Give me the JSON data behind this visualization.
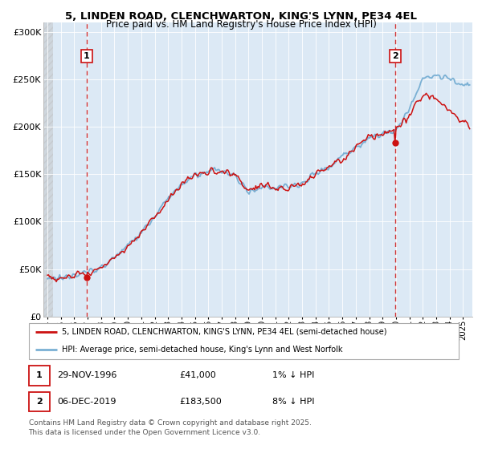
{
  "title_line1": "5, LINDEN ROAD, CLENCHWARTON, KING'S LYNN, PE34 4EL",
  "title_line2": "Price paid vs. HM Land Registry's House Price Index (HPI)",
  "ylabel_ticks": [
    "£0",
    "£50K",
    "£100K",
    "£150K",
    "£200K",
    "£250K",
    "£300K"
  ],
  "ytick_values": [
    0,
    50000,
    100000,
    150000,
    200000,
    250000,
    300000
  ],
  "ylim": [
    0,
    310000
  ],
  "xlim_start": 1993.7,
  "xlim_end": 2025.7,
  "hpi_color": "#7ab0d4",
  "price_color": "#cc1111",
  "marker1_date": 1996.92,
  "marker1_price": 41000,
  "marker1_label": "1",
  "marker2_date": 2019.92,
  "marker2_price": 183500,
  "marker2_label": "2",
  "legend_line1": "5, LINDEN ROAD, CLENCHWARTON, KING'S LYNN, PE34 4EL (semi-detached house)",
  "legend_line2": "HPI: Average price, semi-detached house, King's Lynn and West Norfolk",
  "footnote": "Contains HM Land Registry data © Crown copyright and database right 2025.\nThis data is licensed under the Open Government Licence v3.0.",
  "background_color": "#dce9f5",
  "grid_color": "#ffffff"
}
